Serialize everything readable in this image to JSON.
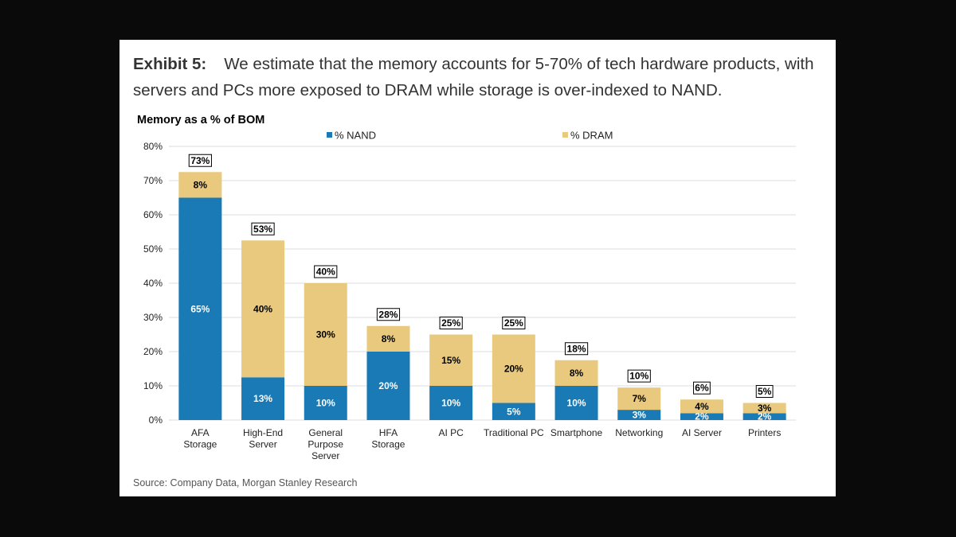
{
  "exhibit": {
    "label": "Exhibit 5:",
    "text": "We estimate that the memory accounts for 5-70% of tech hardware products, with servers and PCs more exposed to DRAM while storage is over-indexed to NAND."
  },
  "source": "Source: Company Data, Morgan Stanley Research",
  "chart_data": {
    "type": "bar",
    "stacked": true,
    "title": "Memory as a % of BOM",
    "xlabel": "",
    "ylabel": "",
    "ylim": [
      0,
      80
    ],
    "yticks": [
      "0%",
      "10%",
      "20%",
      "30%",
      "40%",
      "50%",
      "60%",
      "70%",
      "80%"
    ],
    "grid": true,
    "legend": "top",
    "categories": [
      [
        "AFA",
        "Storage"
      ],
      [
        "High-End",
        "Server"
      ],
      [
        "General",
        "Purpose",
        "Server"
      ],
      [
        "HFA",
        "Storage"
      ],
      [
        "AI PC"
      ],
      [
        "Traditional PC"
      ],
      [
        "Smartphone"
      ],
      [
        "Networking"
      ],
      [
        "AI Server"
      ],
      [
        "Printers"
      ]
    ],
    "series": [
      {
        "name": "% NAND",
        "color": "#1a7ab5",
        "label_color": "#ffffff",
        "values": [
          65,
          12.5,
          10,
          20,
          10,
          5,
          10,
          3,
          2,
          2
        ],
        "labels": [
          "65%",
          "13%",
          "10%",
          "20%",
          "10%",
          "5%",
          "10%",
          "3%",
          "2%",
          "2%"
        ]
      },
      {
        "name": "% DRAM",
        "color": "#e8c97d",
        "label_color": "#000000",
        "values": [
          7.5,
          40,
          30,
          7.5,
          15,
          20,
          7.5,
          6.5,
          4,
          3
        ],
        "labels": [
          "8%",
          "40%",
          "30%",
          "8%",
          "15%",
          "20%",
          "8%",
          "7%",
          "4%",
          "3%"
        ]
      }
    ],
    "totals": [
      "73%",
      "53%",
      "40%",
      "28%",
      "25%",
      "25%",
      "18%",
      "10%",
      "6%",
      "5%"
    ]
  }
}
